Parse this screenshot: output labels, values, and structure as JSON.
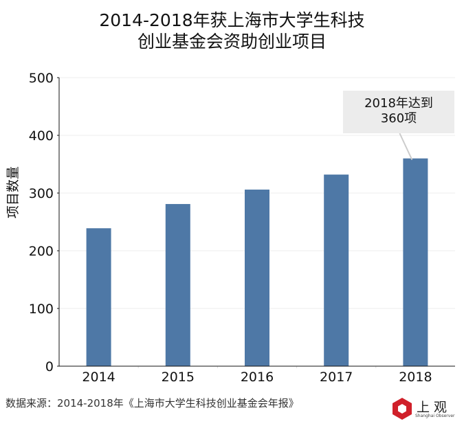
{
  "title_lines": [
    "2014-2018年获上海市大学生科技",
    "创业基金会资助创业项目"
  ],
  "source": "数据来源：2014-2018年《上海市大学生科技创业基金会年报》",
  "logo": {
    "name": "上观",
    "sub": "Shanghai Observer",
    "color": "#d0202a"
  },
  "chart_data": {
    "type": "bar",
    "title": "2014-2018年获上海市大学生科技创业基金会资助创业项目",
    "categories": [
      "2014",
      "2015",
      "2016",
      "2017",
      "2018"
    ],
    "values": [
      239,
      281,
      306,
      332,
      360
    ],
    "xlabel": "",
    "ylabel": "项目数量",
    "ylim": [
      0,
      500
    ],
    "yticks": [
      "0",
      "100",
      "200",
      "300",
      "400",
      "500"
    ],
    "grid": true,
    "bar_color": "#4e78a6",
    "annotation": {
      "lines": [
        "2018年达到",
        "360项"
      ],
      "target": "2018"
    }
  }
}
